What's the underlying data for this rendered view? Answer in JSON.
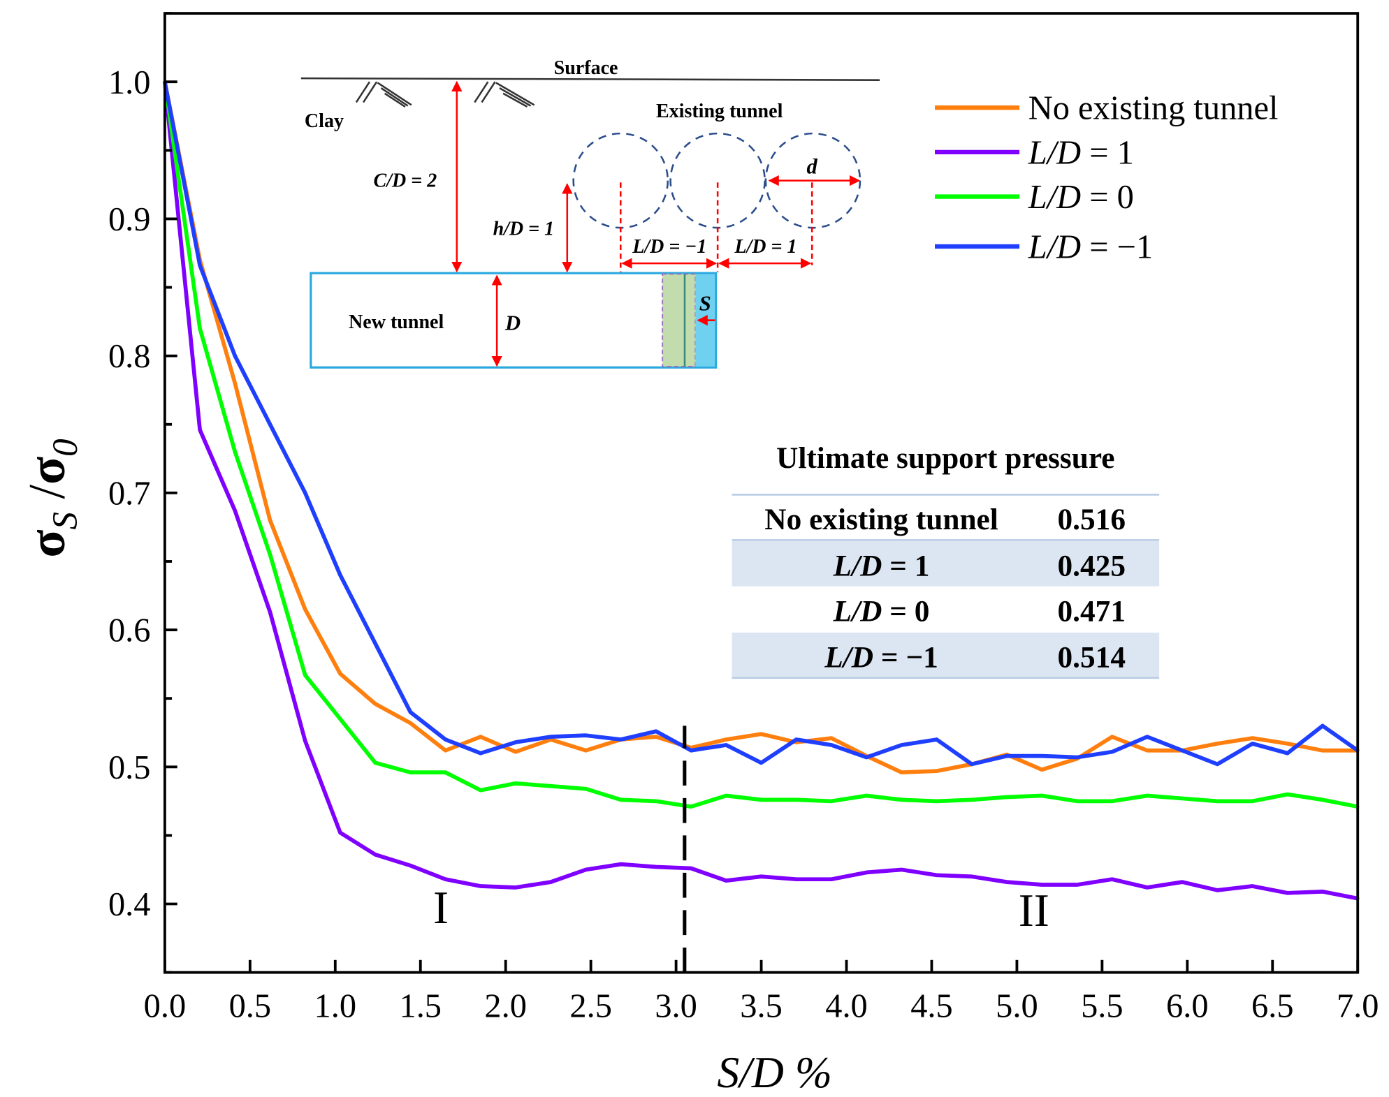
{
  "chart_data": {
    "type": "line",
    "xlabel": "S/D %",
    "ylabel": "σS /σ0",
    "ylabel_main": "σ",
    "ylabel_sub1": "S",
    "ylabel_sep": " /",
    "ylabel_sub2": "0",
    "xlim": [
      0,
      7.0
    ],
    "ylim": [
      0.35,
      1.05
    ],
    "xticks": [
      "0.0",
      "0.5",
      "1.0",
      "1.5",
      "2.0",
      "2.5",
      "3.0",
      "3.5",
      "4.0",
      "4.5",
      "5.0",
      "5.5",
      "6.0",
      "6.5",
      "7.0"
    ],
    "yticks": [
      "0.4",
      "0.5",
      "0.6",
      "0.7",
      "0.8",
      "0.9",
      "1.0"
    ],
    "grid": false,
    "legend_position": "top-right",
    "divider_x": 3.05,
    "regions": [
      {
        "label": "I",
        "x": 1.62,
        "y": 0.386
      },
      {
        "label": "II",
        "x": 5.1,
        "y": 0.384
      }
    ],
    "x_step": 0.20588,
    "series": [
      {
        "name": "No existing tunnel",
        "color": "#ff7f0e",
        "values": [
          1.0,
          0.87,
          0.78,
          0.68,
          0.615,
          0.568,
          0.546,
          0.532,
          0.512,
          0.522,
          0.511,
          0.52,
          0.512,
          0.52,
          0.522,
          0.514,
          0.52,
          0.524,
          0.518,
          0.521,
          0.508,
          0.496,
          0.497,
          0.502,
          0.509,
          0.498,
          0.506,
          0.522,
          0.512,
          0.512,
          0.517,
          0.521,
          0.517,
          0.512,
          0.512
        ]
      },
      {
        "name": "L/D = 1",
        "color": "#8000ff",
        "values": [
          1.0,
          0.746,
          0.687,
          0.613,
          0.519,
          0.452,
          0.436,
          0.428,
          0.418,
          0.413,
          0.412,
          0.416,
          0.425,
          0.429,
          0.427,
          0.426,
          0.417,
          0.42,
          0.418,
          0.418,
          0.423,
          0.425,
          0.421,
          0.42,
          0.416,
          0.414,
          0.414,
          0.418,
          0.412,
          0.416,
          0.41,
          0.413,
          0.408,
          0.409,
          0.404
        ]
      },
      {
        "name": "L/D = 0",
        "color": "#00ff00",
        "values": [
          1.0,
          0.82,
          0.73,
          0.655,
          0.567,
          0.535,
          0.503,
          0.496,
          0.496,
          0.483,
          0.488,
          0.486,
          0.484,
          0.476,
          0.475,
          0.471,
          0.479,
          0.476,
          0.476,
          0.475,
          0.479,
          0.476,
          0.475,
          0.476,
          0.478,
          0.479,
          0.475,
          0.475,
          0.479,
          0.477,
          0.475,
          0.475,
          0.48,
          0.476,
          0.471
        ]
      },
      {
        "name": "L/D = −1",
        "color": "#1f3fff",
        "values": [
          1.0,
          0.866,
          0.8,
          0.75,
          0.7,
          0.64,
          0.59,
          0.54,
          0.52,
          0.51,
          0.518,
          0.522,
          0.523,
          0.52,
          0.526,
          0.512,
          0.516,
          0.503,
          0.52,
          0.516,
          0.507,
          0.516,
          0.52,
          0.502,
          0.508,
          0.508,
          0.507,
          0.511,
          0.522,
          0.512,
          0.502,
          0.517,
          0.51,
          0.53,
          0.512
        ]
      }
    ],
    "table": {
      "title": "Ultimate support pressure",
      "rows": [
        {
          "label": "No existing tunnel",
          "value": "0.516"
        },
        {
          "label": "L/D =  1",
          "value": "0.425"
        },
        {
          "label": "L/D =  0",
          "value": "0.471"
        },
        {
          "label": "L/D = −1",
          "value": "0.514"
        }
      ]
    }
  },
  "inset": {
    "surface": "Surface",
    "clay": "Clay",
    "existing_tunnel": "Existing tunnel",
    "cd": "C/D = 2",
    "hd": "h/D = 1",
    "d": "d",
    "ld_neg": "L/D = −1",
    "ld_pos": "L/D = 1",
    "new_tunnel": "New tunnel",
    "D": "D",
    "S": "S"
  }
}
